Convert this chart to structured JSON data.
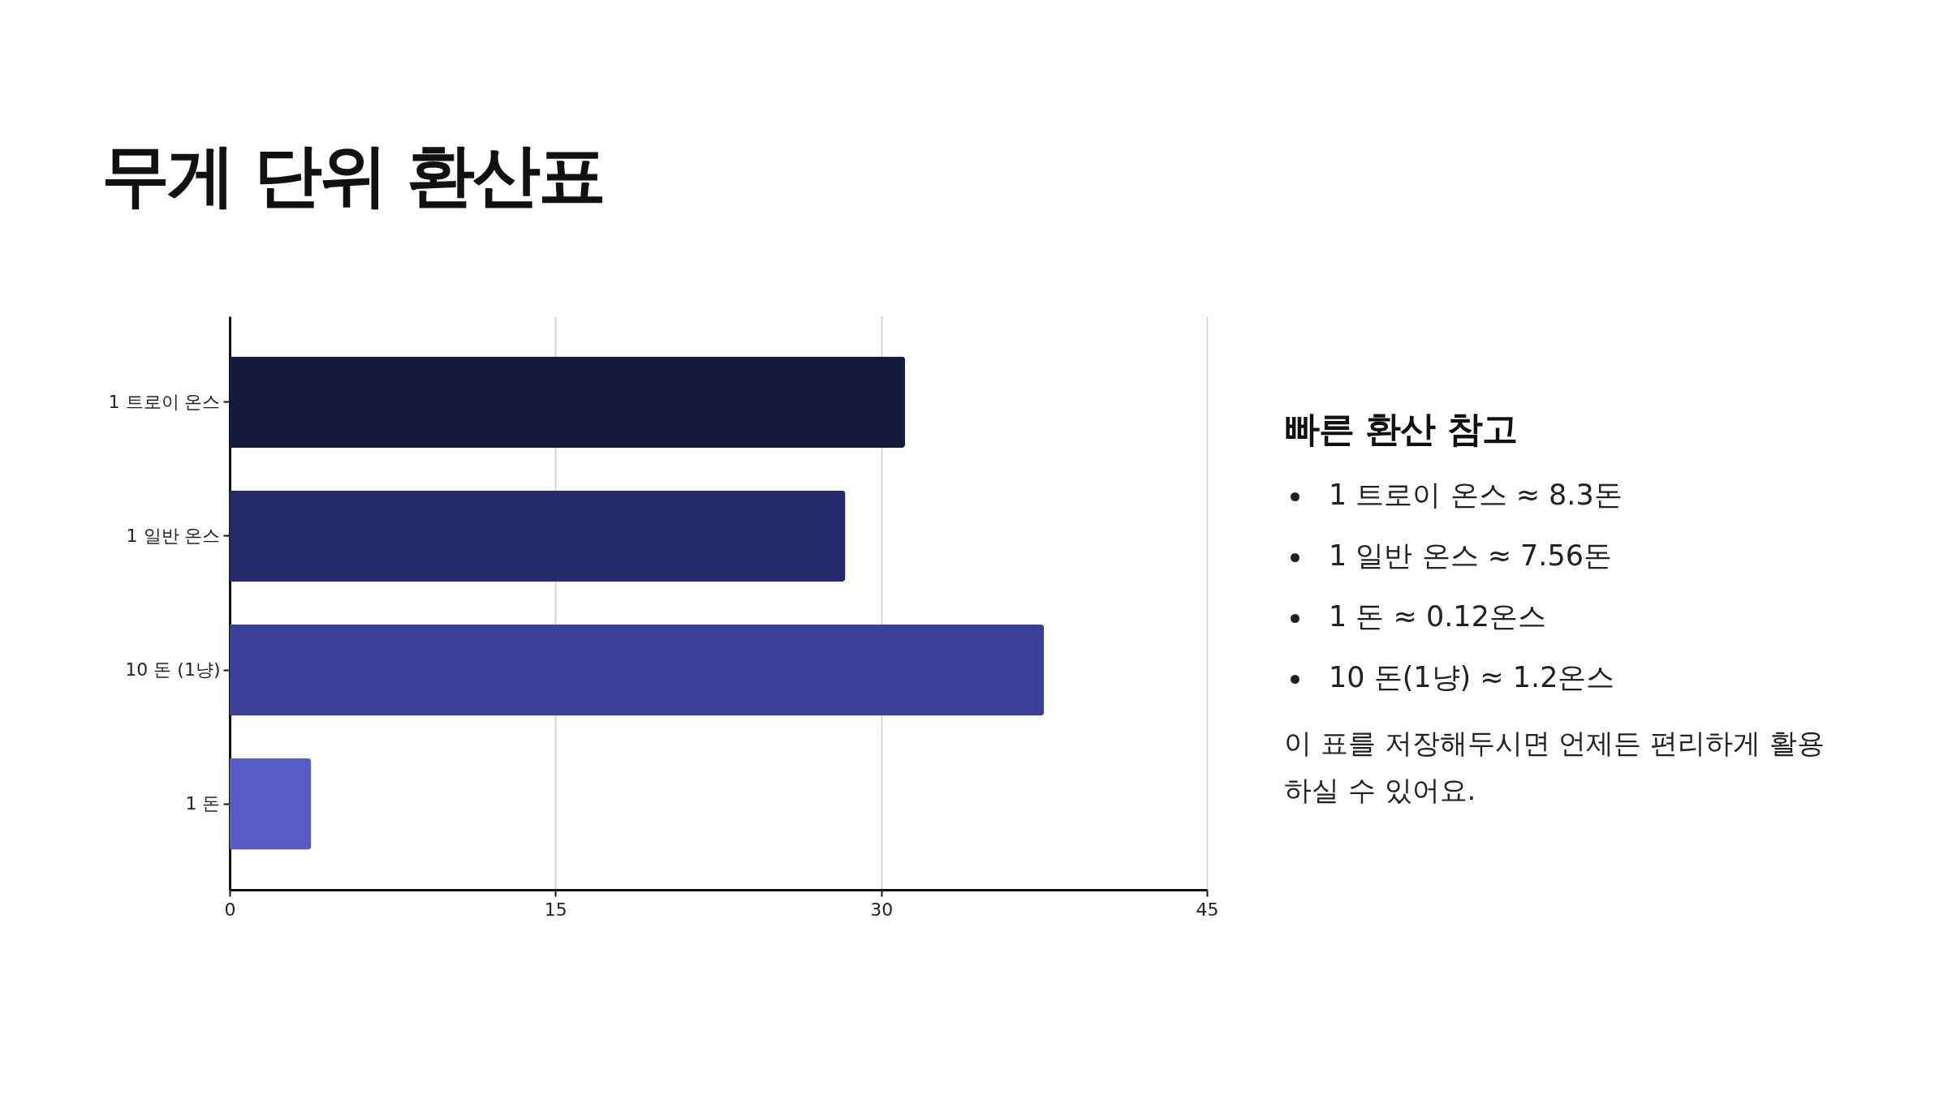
{
  "chart_data": {
    "type": "bar",
    "orientation": "horizontal",
    "title": "무게 단위 환산표",
    "categories": [
      "1 트로이 온스",
      "1 일반 온스",
      "10 돈 (1냥)",
      "1 돈"
    ],
    "values": [
      31.1,
      28.35,
      37.5,
      3.75
    ],
    "colors": [
      "#161a3d",
      "#262a6b",
      "#3a3f9a",
      "#565cc4"
    ],
    "xlim": [
      0,
      45
    ],
    "xticks": [
      0,
      15,
      30,
      45
    ],
    "grid": "x",
    "annotations": [
      "빠른 환산 참고",
      "1 트로이 온스 ≈ 8.3돈",
      "1 일반 온스 ≈ 7.56돈",
      "1 돈 ≈ 0.12온스",
      "10 돈(1냥) ≈ 1.2온스",
      "이 표를 저장해두시면 언제든 편리하게 활용하실 수 있어요."
    ]
  }
}
